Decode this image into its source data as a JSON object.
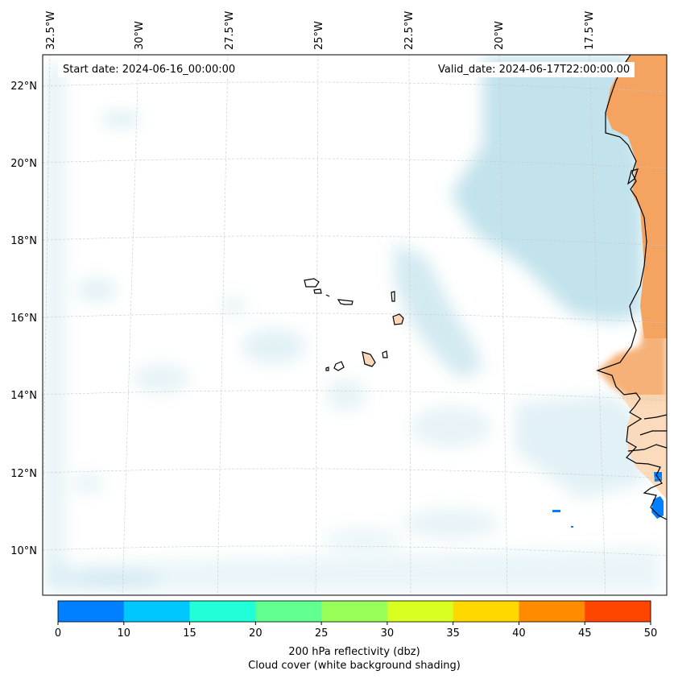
{
  "map": {
    "start_date": "Start date: 2024-06-16_00:00:00",
    "valid_date": "Valid_date: 2024-06-17T22:00:00.00",
    "lon_labels": [
      "32.5°W",
      "30°W",
      "27.5°W",
      "25°W",
      "22.5°W",
      "20°W",
      "17.5°W"
    ],
    "lat_labels": [
      "22°N",
      "20°N",
      "18°N",
      "16°N",
      "14°N",
      "12°N",
      "10°N"
    ],
    "colorbar": {
      "ticks": [
        "0",
        "10",
        "15",
        "20",
        "25",
        "30",
        "35",
        "40",
        "45",
        "50"
      ],
      "colors": [
        "#0080ff",
        "#00c8ff",
        "#20ffd8",
        "#60ff90",
        "#98ff58",
        "#d8ff20",
        "#ffd800",
        "#ff8c00",
        "#ff4600"
      ],
      "label_line1": "200 hPa reflectivity (dbz)",
      "label_line2": "Cloud cover (white background shading)"
    },
    "colors": {
      "cloud": "#add8e6",
      "land_hot": "#f4a460",
      "land_light": "#fbd7b5",
      "reflectivity": "#0080ff",
      "coast": "#000000",
      "grid": "#c8c8c8"
    }
  }
}
